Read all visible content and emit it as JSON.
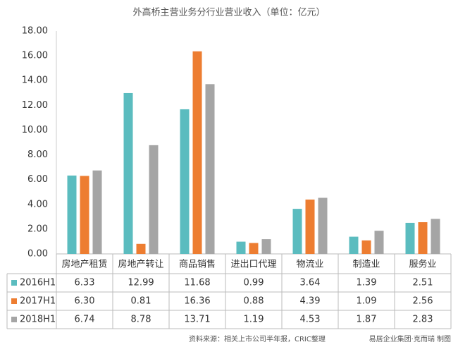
{
  "chart_data": {
    "type": "bar",
    "title": "外高桥主营业务分行业营业收入（单位：亿元）",
    "categories": [
      "房地产租赁",
      "房地产转让",
      "商品销售",
      "进出口代理",
      "物流业",
      "制造业",
      "服务业"
    ],
    "series": [
      {
        "name": "2016H1",
        "color": "#5bbcbf",
        "values": [
          6.33,
          12.99,
          11.68,
          0.99,
          3.64,
          1.39,
          2.51
        ],
        "value_labels": [
          "6.33",
          "12.99",
          "11.68",
          "0.99",
          "3.64",
          "1.39",
          "2.51"
        ]
      },
      {
        "name": "2017H1",
        "color": "#ed7d31",
        "values": [
          6.3,
          0.81,
          16.36,
          0.88,
          4.39,
          1.09,
          2.56
        ],
        "value_labels": [
          "6.30",
          "0.81",
          "16.36",
          "0.88",
          "4.39",
          "1.09",
          "2.56"
        ]
      },
      {
        "name": "2018H1",
        "color": "#a5a5a5",
        "values": [
          6.74,
          8.78,
          13.71,
          1.19,
          4.53,
          1.87,
          2.83
        ],
        "value_labels": [
          "6.74",
          "8.78",
          "13.71",
          "1.19",
          "4.53",
          "1.87",
          "2.83"
        ]
      }
    ],
    "ylim": [
      0,
      18
    ],
    "yticks": [
      {
        "value": 0,
        "label": "0.00"
      },
      {
        "value": 2,
        "label": "2.00"
      },
      {
        "value": 4,
        "label": "4.00"
      },
      {
        "value": 6,
        "label": "6.00"
      },
      {
        "value": 8,
        "label": "8.00"
      },
      {
        "value": 10,
        "label": "10.00"
      },
      {
        "value": 12,
        "label": "12.00"
      },
      {
        "value": 14,
        "label": "14.00"
      },
      {
        "value": 16,
        "label": "16.00"
      },
      {
        "value": 18,
        "label": "18.00"
      }
    ],
    "grid": false,
    "source": "资料来源：相关上市公司半年报，CRIC整理",
    "credit": "易居企业集团·克而瑞 制图"
  }
}
